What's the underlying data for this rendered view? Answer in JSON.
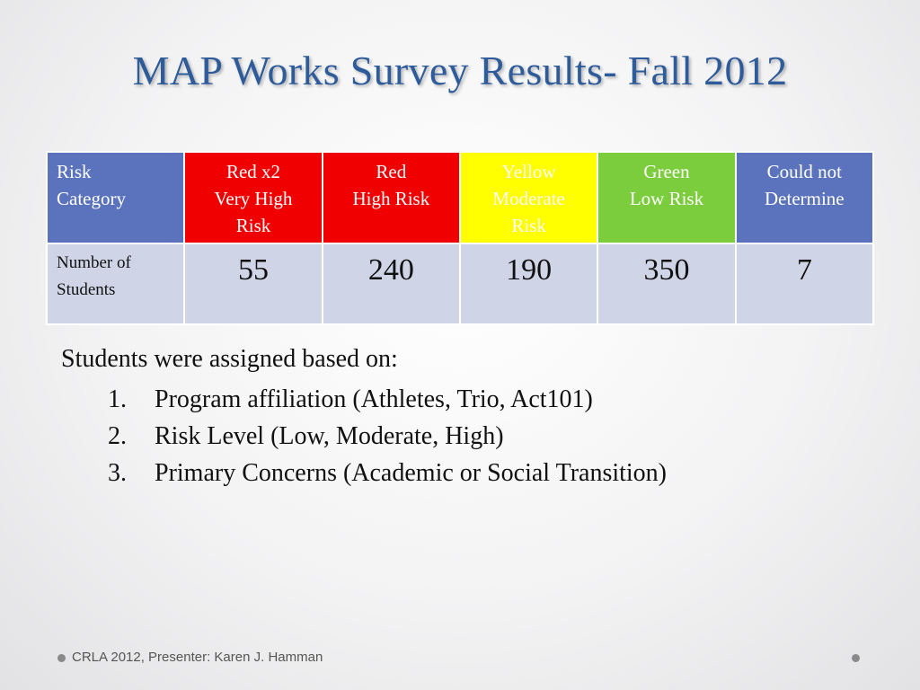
{
  "title": "MAP Works Survey Results- Fall 2012",
  "table": {
    "header": [
      {
        "lines": [
          "Risk",
          "Category"
        ],
        "bg": "#5b73bd",
        "fg": "#ffffff"
      },
      {
        "lines": [
          "Red x2",
          "Very High",
          "Risk"
        ],
        "bg": "#f00000",
        "fg": "#ffffff"
      },
      {
        "lines": [
          "Red",
          "High Risk"
        ],
        "bg": "#f00000",
        "fg": "#ffffff"
      },
      {
        "lines": [
          "Yellow",
          "Moderate",
          "Risk"
        ],
        "bg": "#ffff00",
        "fg": "#ffffff"
      },
      {
        "lines": [
          "Green",
          "Low Risk"
        ],
        "bg": "#7ccd3e",
        "fg": "#ffffff"
      },
      {
        "lines": [
          "Could not",
          "Determine"
        ],
        "bg": "#5b73bd",
        "fg": "#ffffff"
      }
    ],
    "row_label": [
      "Number of",
      "Students"
    ],
    "values": [
      "55",
      "240",
      "190",
      "350",
      "7"
    ]
  },
  "intro": "Students were assigned based on:",
  "criteria": [
    {
      "num": "1.",
      "text": "Program affiliation (Athletes, Trio, Act101)"
    },
    {
      "num": "2.",
      "text": "Risk Level (Low, Moderate, High)"
    },
    {
      "num": "3.",
      "text": "Primary Concerns (Academic or Social Transition)"
    }
  ],
  "footer": "CRLA 2012, Presenter: Karen J. Hamman"
}
